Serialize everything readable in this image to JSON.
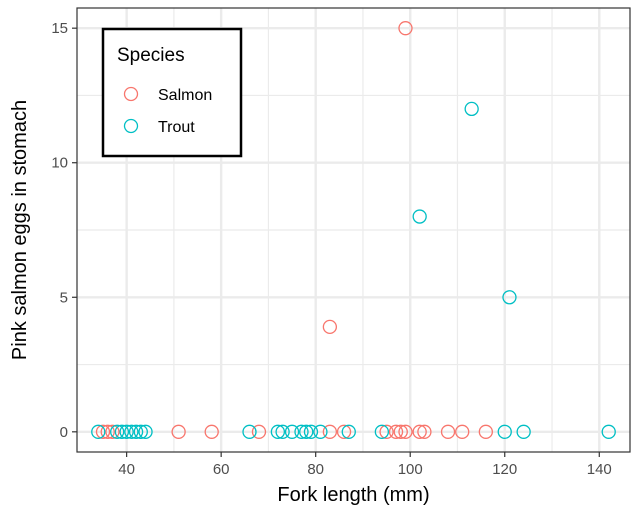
{
  "chart_data": {
    "type": "scatter",
    "title": "",
    "xlabel": "Fork length (mm)",
    "ylabel": "Pink salmon eggs in stomach",
    "xlim": [
      29.5,
      146.5
    ],
    "ylim": [
      -0.75,
      15.75
    ],
    "xticks": [
      40,
      60,
      80,
      100,
      120,
      140
    ],
    "yticks": [
      0,
      5,
      10,
      15
    ],
    "grid": true,
    "legend": {
      "title": "Species",
      "position": "top-left"
    },
    "series": [
      {
        "name": "Salmon",
        "color": "#F8766D",
        "x": [
          35,
          36,
          37,
          51,
          58,
          68,
          83,
          86,
          95,
          97,
          98,
          99,
          102,
          103,
          108,
          111,
          116,
          83,
          99
        ],
        "y": [
          0,
          0,
          0,
          0,
          0,
          0,
          0,
          0,
          0,
          0,
          0,
          0,
          0,
          0,
          0,
          0,
          0,
          3.9,
          15
        ]
      },
      {
        "name": "Trout",
        "color": "#00BFC4",
        "x": [
          34,
          38,
          39,
          40,
          41,
          42,
          43,
          44,
          66,
          72,
          73,
          75,
          77,
          78,
          79,
          81,
          87,
          94,
          120,
          124,
          142,
          102,
          113,
          121
        ],
        "y": [
          0,
          0,
          0,
          0,
          0,
          0,
          0,
          0,
          0,
          0,
          0,
          0,
          0,
          0,
          0,
          0,
          0,
          0,
          0,
          0,
          0,
          8,
          12,
          5
        ]
      }
    ]
  }
}
